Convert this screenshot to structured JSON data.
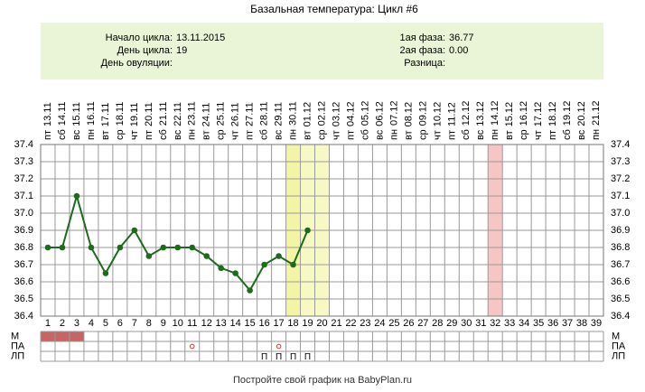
{
  "title": "Базальная температура: Цикл #6",
  "info_left": [
    {
      "label": "Начало цикла:",
      "value": "13.11.2015"
    },
    {
      "label": "День цикла:",
      "value": "19"
    },
    {
      "label": "День овуляции:"
    }
  ],
  "info_right": [
    {
      "label": "1ая фаза:",
      "value": "36.77"
    },
    {
      "label": "2ая фаза:",
      "value": "0.00"
    },
    {
      "label": "Разница:"
    }
  ],
  "chart_data": {
    "type": "line",
    "weekdays": [
      "пт",
      "сб",
      "вс",
      "пн",
      "вт",
      "ср",
      "чт",
      "пт",
      "сб",
      "вс",
      "пн",
      "вт",
      "ср",
      "чт",
      "пт",
      "сб",
      "вс",
      "пн",
      "вт",
      "ср",
      "чт",
      "пт",
      "сб",
      "вс",
      "пн",
      "вт",
      "ср",
      "чт",
      "пт",
      "сб",
      "вс",
      "пн",
      "вт",
      "ср",
      "чт",
      "пт",
      "сб",
      "вс",
      "пн"
    ],
    "dates": [
      "13.11",
      "14.11",
      "15.11",
      "16.11",
      "17.11",
      "18.11",
      "19.11",
      "20.11",
      "21.11",
      "22.11",
      "23.11",
      "24.11",
      "25.11",
      "26.11",
      "27.11",
      "28.11",
      "29.11",
      "30.11",
      "01.12",
      "02.12",
      "03.12",
      "04.12",
      "05.12",
      "06.12",
      "07.12",
      "08.12",
      "09.12",
      "10.12",
      "11.12",
      "12.12",
      "13.12",
      "14.12",
      "15.12",
      "16.12",
      "17.12",
      "18.12",
      "19.12",
      "20.12",
      "21.12"
    ],
    "x": [
      1,
      2,
      3,
      4,
      5,
      6,
      7,
      8,
      9,
      10,
      11,
      12,
      13,
      14,
      15,
      16,
      17,
      18,
      19,
      20,
      21,
      22,
      23,
      24,
      25,
      26,
      27,
      28,
      29,
      30,
      31,
      32,
      33,
      34,
      35,
      36,
      37,
      38,
      39
    ],
    "values": [
      36.8,
      36.8,
      37.1,
      36.8,
      36.65,
      36.8,
      36.9,
      36.75,
      36.8,
      36.8,
      36.8,
      36.75,
      36.68,
      36.65,
      36.55,
      36.7,
      36.75,
      36.7,
      36.9,
      null,
      null,
      null,
      null,
      null,
      null,
      null,
      null,
      null,
      null,
      null,
      null,
      null,
      null,
      null,
      null,
      null,
      null,
      null,
      null
    ],
    "color": "#1e6b1e",
    "ylim": [
      36.4,
      37.4
    ],
    "yticks": [
      36.4,
      36.5,
      36.6,
      36.7,
      36.8,
      36.9,
      {
        "value": 37,
        "label": "37.0"
      },
      37.1,
      37.2,
      37.3,
      37.4
    ],
    "grid": true,
    "highlights": [
      {
        "days": [
          18
        ],
        "color": "#f4f4a6"
      },
      {
        "days": [
          19,
          20
        ],
        "color": "#f8f8c4"
      },
      {
        "days": [
          32
        ],
        "color": "#f6c6c6"
      }
    ],
    "rows": [
      {
        "label": "М",
        "days": [
          1,
          2,
          3
        ],
        "color": "#c96464"
      },
      {
        "label": "ПА",
        "days": [
          11,
          17
        ],
        "color": "#d04040"
      },
      {
        "label": "ЛП",
        "mark": "П",
        "days": [
          16,
          17,
          18,
          19
        ]
      }
    ]
  },
  "footer": "Постройте свой график на BabyPlan.ru"
}
